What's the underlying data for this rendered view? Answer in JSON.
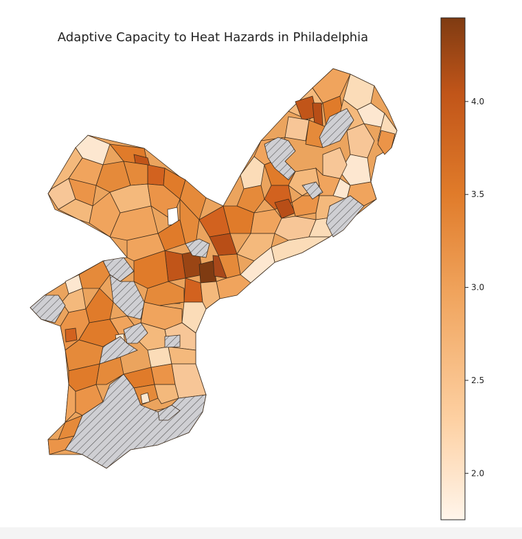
{
  "title": "Adaptive Capacity to Heat Hazards in Philadelphia",
  "colorbar": {
    "min": 1.75,
    "max": 4.45,
    "ticks": [
      2.0,
      2.5,
      3.0,
      3.5,
      4.0
    ],
    "tick_labels": [
      "2.0",
      "2.5",
      "3.0",
      "3.5",
      "4.0"
    ],
    "colormap": "Oranges",
    "stops": [
      "#fff5eb",
      "#fdd0a2",
      "#f0a45d",
      "#e07b2a",
      "#c15519",
      "#7f3b12"
    ]
  },
  "legend_hatch": "gray hatched = no data",
  "nodata_color": "#cfcfd3"
}
